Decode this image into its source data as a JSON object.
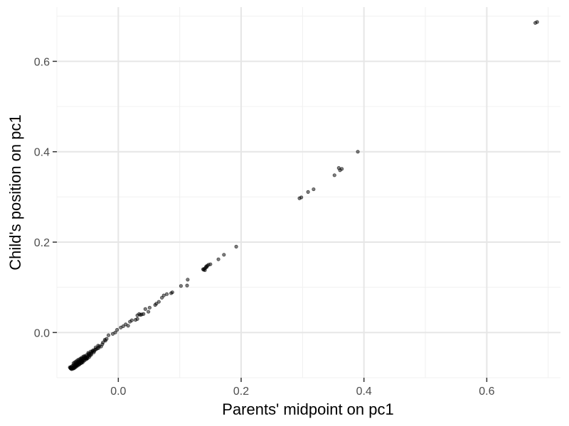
{
  "chart_data": {
    "type": "scatter",
    "title": "",
    "xlabel": "Parents' midpoint on pc1",
    "ylabel": "Child's position on pc1",
    "xlim": [
      -0.1,
      0.72
    ],
    "ylim": [
      -0.1,
      0.72
    ],
    "x_ticks": [
      0.0,
      0.2,
      0.4,
      0.6
    ],
    "x_tick_labels": [
      "0.0",
      "0.2",
      "0.4",
      "0.6"
    ],
    "y_ticks": [
      0.0,
      0.2,
      0.4,
      0.6
    ],
    "y_tick_labels": [
      "0.0",
      "0.2",
      "0.4",
      "0.6"
    ],
    "grid": true,
    "theme": "minimal",
    "point_color": "#000000",
    "point_alpha": 0.5,
    "series": [
      {
        "points": [
          [
            0.682,
            0.687
          ],
          [
            0.679,
            0.685
          ],
          [
            0.39,
            0.4
          ],
          [
            0.364,
            0.362
          ],
          [
            0.359,
            0.364
          ],
          [
            0.361,
            0.359
          ],
          [
            0.352,
            0.348
          ],
          [
            0.318,
            0.317
          ],
          [
            0.309,
            0.311
          ],
          [
            0.298,
            0.299
          ],
          [
            0.295,
            0.297
          ],
          [
            0.192,
            0.19
          ],
          [
            0.172,
            0.172
          ],
          [
            0.163,
            0.162
          ],
          [
            0.15,
            0.151
          ],
          [
            0.147,
            0.15
          ],
          [
            0.145,
            0.148
          ],
          [
            0.144,
            0.145
          ],
          [
            0.142,
            0.143
          ],
          [
            0.14,
            0.141
          ],
          [
            0.139,
            0.139
          ],
          [
            0.138,
            0.14
          ],
          [
            0.141,
            0.138
          ],
          [
            0.143,
            0.146
          ],
          [
            0.113,
            0.117
          ],
          [
            0.112,
            0.104
          ],
          [
            0.102,
            0.103
          ],
          [
            0.088,
            0.089
          ],
          [
            0.086,
            0.087
          ],
          [
            0.079,
            0.085
          ],
          [
            0.074,
            0.082
          ],
          [
            0.071,
            0.077
          ],
          [
            0.066,
            0.068
          ],
          [
            0.062,
            0.064
          ],
          [
            0.06,
            0.061
          ],
          [
            0.051,
            0.055
          ],
          [
            0.049,
            0.046
          ],
          [
            0.044,
            0.052
          ],
          [
            0.041,
            0.041
          ],
          [
            0.038,
            0.04
          ],
          [
            0.036,
            0.039
          ],
          [
            0.034,
            0.041
          ],
          [
            0.031,
            0.038
          ],
          [
            0.031,
            0.03
          ],
          [
            0.028,
            0.028
          ],
          [
            0.022,
            0.027
          ],
          [
            0.019,
            0.024
          ],
          [
            0.016,
            0.015
          ],
          [
            0.012,
            0.018
          ],
          [
            0.008,
            0.014
          ],
          [
            0.004,
            0.011
          ],
          [
            -0.002,
            0.006
          ],
          [
            -0.005,
            0.0
          ],
          [
            -0.009,
            -0.003
          ],
          [
            -0.016,
            -0.006
          ],
          [
            -0.019,
            -0.014
          ],
          [
            -0.022,
            -0.016
          ],
          [
            -0.021,
            -0.018
          ],
          [
            -0.025,
            -0.022
          ],
          [
            -0.026,
            -0.026
          ],
          [
            -0.028,
            -0.031
          ],
          [
            -0.031,
            -0.03
          ],
          [
            -0.033,
            -0.029
          ],
          [
            -0.034,
            -0.035
          ],
          [
            -0.036,
            -0.037
          ],
          [
            -0.038,
            -0.038
          ],
          [
            -0.039,
            -0.041
          ],
          [
            -0.041,
            -0.039
          ],
          [
            -0.043,
            -0.043
          ],
          [
            -0.044,
            -0.046
          ],
          [
            -0.045,
            -0.042
          ],
          [
            -0.047,
            -0.047
          ],
          [
            -0.048,
            -0.051
          ],
          [
            -0.049,
            -0.045
          ],
          [
            -0.05,
            -0.053
          ],
          [
            -0.052,
            -0.05
          ],
          [
            -0.053,
            -0.055
          ],
          [
            -0.054,
            -0.057
          ],
          [
            -0.055,
            -0.052
          ],
          [
            -0.056,
            -0.059
          ],
          [
            -0.057,
            -0.056
          ],
          [
            -0.058,
            -0.061
          ],
          [
            -0.059,
            -0.058
          ],
          [
            -0.06,
            -0.063
          ],
          [
            -0.061,
            -0.06
          ],
          [
            -0.062,
            -0.065
          ],
          [
            -0.063,
            -0.062
          ],
          [
            -0.064,
            -0.067
          ],
          [
            -0.065,
            -0.064
          ],
          [
            -0.066,
            -0.069
          ],
          [
            -0.067,
            -0.066
          ],
          [
            -0.068,
            -0.071
          ],
          [
            -0.069,
            -0.068
          ],
          [
            -0.07,
            -0.073
          ],
          [
            -0.071,
            -0.07
          ],
          [
            -0.072,
            -0.075
          ],
          [
            -0.073,
            -0.072
          ],
          [
            -0.074,
            -0.077
          ],
          [
            -0.075,
            -0.074
          ],
          [
            -0.076,
            -0.078
          ],
          [
            -0.077,
            -0.076
          ],
          [
            -0.078,
            -0.079
          ],
          [
            -0.079,
            -0.077
          ],
          [
            -0.058,
            -0.066
          ],
          [
            -0.061,
            -0.068
          ],
          [
            -0.063,
            -0.07
          ],
          [
            -0.066,
            -0.073
          ],
          [
            -0.068,
            -0.075
          ],
          [
            -0.07,
            -0.077
          ],
          [
            -0.072,
            -0.079
          ],
          [
            -0.074,
            -0.08
          ],
          [
            -0.055,
            -0.062
          ],
          [
            -0.052,
            -0.059
          ],
          [
            -0.05,
            -0.057
          ],
          [
            -0.047,
            -0.054
          ],
          [
            -0.057,
            -0.053
          ],
          [
            -0.06,
            -0.056
          ],
          [
            -0.062,
            -0.058
          ],
          [
            -0.065,
            -0.06
          ],
          [
            -0.067,
            -0.062
          ],
          [
            -0.069,
            -0.064
          ],
          [
            -0.071,
            -0.066
          ],
          [
            -0.073,
            -0.068
          ],
          [
            -0.046,
            -0.05
          ],
          [
            -0.049,
            -0.048
          ],
          [
            -0.051,
            -0.056
          ],
          [
            -0.054,
            -0.054
          ],
          [
            -0.059,
            -0.064
          ],
          [
            -0.064,
            -0.071
          ],
          [
            -0.069,
            -0.074
          ],
          [
            -0.075,
            -0.078
          ],
          [
            -0.077,
            -0.08
          ],
          [
            -0.078,
            -0.078
          ],
          [
            -0.076,
            -0.081
          ],
          [
            -0.073,
            -0.079
          ],
          [
            -0.04,
            -0.044
          ],
          [
            -0.042,
            -0.041
          ],
          [
            -0.037,
            -0.033
          ],
          [
            -0.032,
            -0.034
          ],
          [
            -0.044,
            -0.049
          ],
          [
            -0.053,
            -0.058
          ],
          [
            -0.06,
            -0.067
          ],
          [
            -0.066,
            -0.07
          ],
          [
            -0.071,
            -0.076
          ],
          [
            -0.068,
            -0.072
          ],
          [
            -0.063,
            -0.066
          ],
          [
            -0.057,
            -0.063
          ]
        ]
      }
    ]
  }
}
